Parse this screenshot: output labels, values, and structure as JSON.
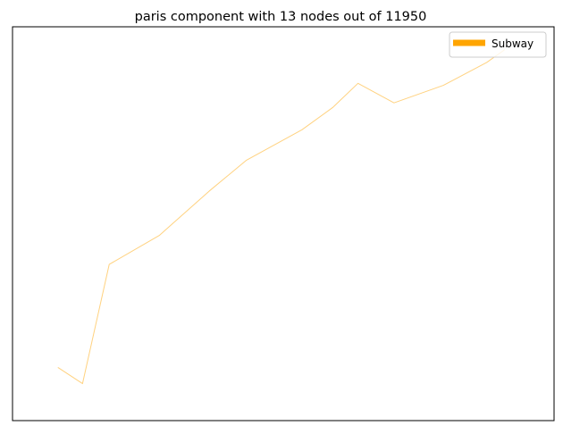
{
  "chart_data": {
    "type": "line",
    "title": "paris component with 13 nodes out of 11950",
    "xlabel": "",
    "ylabel": "",
    "axes_ticks": false,
    "grid": false,
    "legend": {
      "placement": "top-right",
      "entries": [
        {
          "name": "Subway",
          "color": "#FFA500"
        }
      ]
    },
    "series": [
      {
        "name": "Subway",
        "color": "#FFA500",
        "line_opacity": 0.5,
        "points": [
          {
            "x": 2.3414,
            "y": 48.8366
          },
          {
            "x": 2.3451,
            "y": 48.8342
          },
          {
            "x": 2.3491,
            "y": 48.8519
          },
          {
            "x": 2.3566,
            "y": 48.8562
          },
          {
            "x": 2.3641,
            "y": 48.8628
          },
          {
            "x": 2.3697,
            "y": 48.8674
          },
          {
            "x": 2.378,
            "y": 48.8719
          },
          {
            "x": 2.3826,
            "y": 48.8752
          },
          {
            "x": 2.3864,
            "y": 48.8788
          },
          {
            "x": 2.3918,
            "y": 48.8759
          },
          {
            "x": 2.3992,
            "y": 48.8785
          },
          {
            "x": 2.4057,
            "y": 48.8819
          },
          {
            "x": 2.4084,
            "y": 48.8838
          }
        ]
      }
    ],
    "xlim": [
      2.3346,
      2.4158
    ],
    "ylim": [
      48.8287,
      48.8872
    ]
  }
}
